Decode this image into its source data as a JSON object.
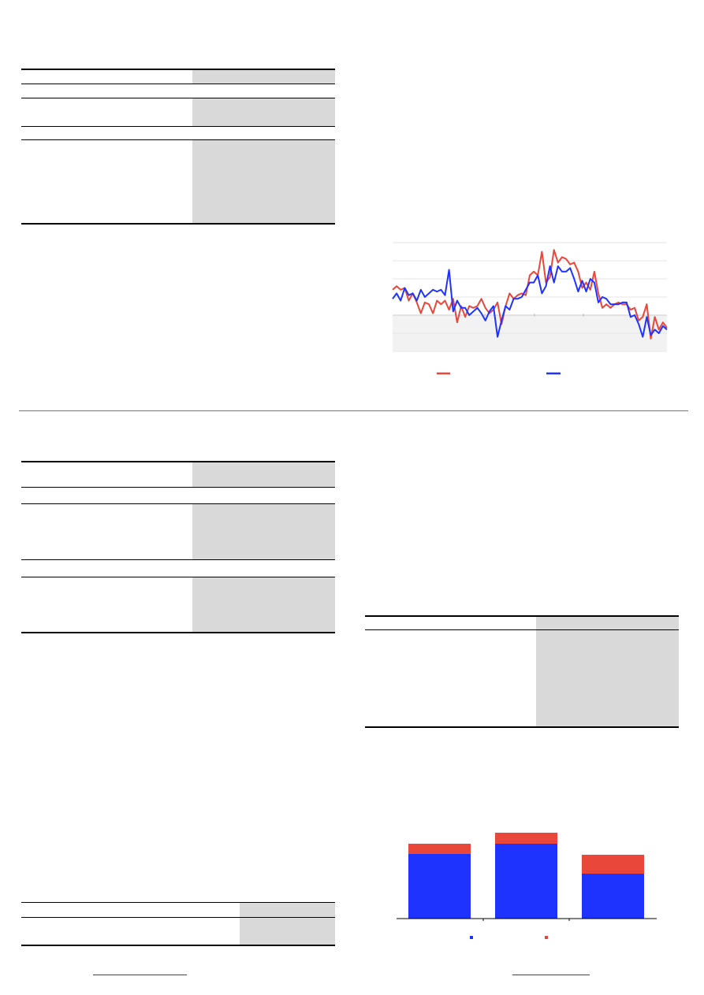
{
  "colors": {
    "accent_red": "#e8473a",
    "accent_blue": "#1f33ff",
    "table_shade": "#d9d9d9",
    "negative_zone": "#f2f2f2",
    "divider": "#e8473a"
  },
  "chart_data": [
    {
      "type": "line",
      "title": "",
      "xlabel": "",
      "ylabel": "",
      "ylim": [
        -2,
        4
      ],
      "grid": true,
      "legend": "bottom",
      "series": [
        {
          "color": "#e8473a",
          "values": [
            1.4,
            1.6,
            1.4,
            1.5,
            0.8,
            1.2,
            0.7,
            0.1,
            0.7,
            0.6,
            0.1,
            0.8,
            0.6,
            0.8,
            0.3,
            0.9,
            -0.4,
            0.5,
            -0.1,
            0.5,
            0.4,
            0.5,
            0.9,
            0.4,
            0.1,
            0.3,
            0.7,
            -0.5,
            0.5,
            1.2,
            0.9,
            1.1,
            1.2,
            1.1,
            2.2,
            2.4,
            2.2,
            3.5,
            1.8,
            2.1,
            3.6,
            2.9,
            3.2,
            3.1,
            2.8,
            2.9,
            2.4,
            1.5,
            1.8,
            1.4,
            2.4,
            1.2,
            0.4,
            0.6,
            0.4,
            0.6,
            0.7,
            0.6,
            0.6,
            0.3,
            0.4,
            -0.3,
            -0.1,
            0.6,
            -1.3,
            -0.1,
            -0.8,
            -0.4,
            -0.7
          ]
        },
        {
          "color": "#1f33ff",
          "values": [
            0.9,
            1.2,
            0.8,
            1.5,
            1.1,
            1.2,
            0.8,
            1.4,
            1.0,
            1.2,
            1.4,
            1.3,
            1.4,
            1.1,
            2.5,
            0.2,
            0.8,
            0.4,
            0.4,
            0.0,
            0.2,
            0.4,
            0.1,
            -0.3,
            0.2,
            0.5,
            -1.2,
            -0.3,
            0.5,
            0.3,
            0.9,
            0.9,
            1.0,
            1.4,
            1.8,
            1.8,
            2.2,
            1.2,
            1.6,
            2.7,
            1.8,
            2.7,
            2.4,
            2.4,
            2.6,
            2.0,
            1.3,
            1.9,
            1.3,
            2.0,
            1.8,
            0.7,
            1.0,
            0.9,
            0.6,
            0.6,
            0.6,
            0.7,
            0.7,
            -0.1,
            0.0,
            -0.5,
            -1.2,
            -0.1,
            -1.1,
            -0.8,
            -1.0,
            -0.6,
            -0.8
          ]
        }
      ]
    },
    {
      "type": "bar",
      "stacked": true,
      "title": "",
      "xlabel": "",
      "ylabel": "",
      "legend": "bottom",
      "categories": [
        "",
        "",
        ""
      ],
      "series": [
        {
          "color": "#1f33ff",
          "values": [
            82,
            95,
            57
          ]
        },
        {
          "color": "#e8473a",
          "values": [
            13,
            14,
            24
          ]
        }
      ]
    }
  ]
}
